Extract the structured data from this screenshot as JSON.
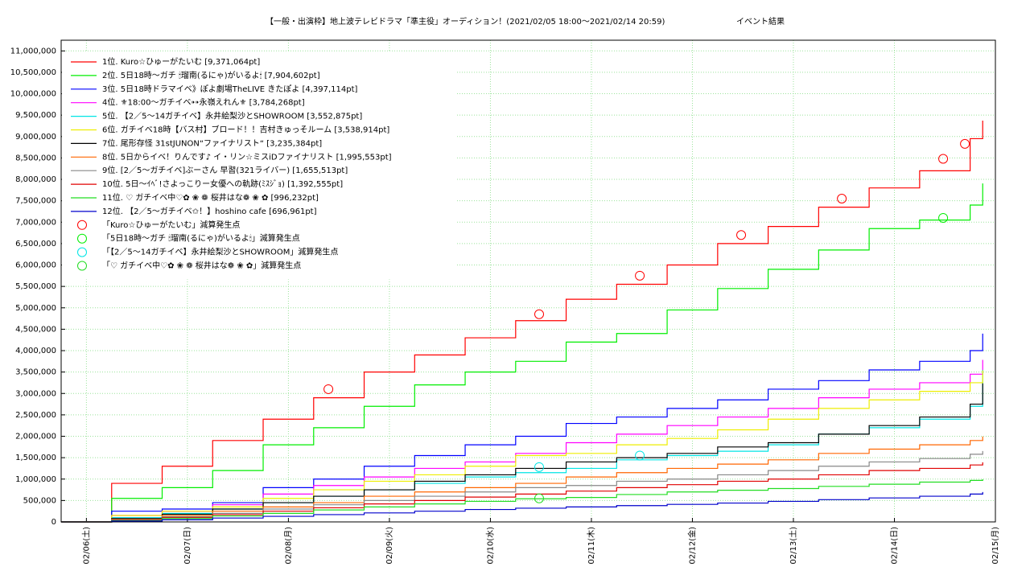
{
  "chart_data": {
    "type": "line",
    "title": "【一般・出演枠】地上波テレビドラマ「準主役」オーディション！(2021/02/05 18:00〜2021/02/14 20:59)",
    "subtitle": "イベント結果",
    "x": [
      "2021/02/05 18:00",
      "2021/02/06 06:00",
      "2021/02/06 18:00",
      "2021/02/07 06:00",
      "2021/02/07 18:00",
      "2021/02/08 06:00",
      "2021/02/08 18:00",
      "2021/02/09 06:00",
      "2021/02/09 18:00",
      "2021/02/10 06:00",
      "2021/02/10 18:00",
      "2021/02/11 06:00",
      "2021/02/11 18:00",
      "2021/02/12 06:00",
      "2021/02/12 18:00",
      "2021/02/13 06:00",
      "2021/02/13 18:00",
      "2021/02/14 06:00",
      "2021/02/14 18:00",
      "2021/02/14 20:59"
    ],
    "xlim": [
      "2021/02/05 18:00",
      "2021/02/15 00:00"
    ],
    "xticks": [
      {
        "value": "2021/02/06 00:00",
        "label": "02/06(土)"
      },
      {
        "value": "2021/02/07 00:00",
        "label": "02/07(日)"
      },
      {
        "value": "2021/02/08 00:00",
        "label": "02/08(月)"
      },
      {
        "value": "2021/02/09 00:00",
        "label": "02/09(火)"
      },
      {
        "value": "2021/02/10 00:00",
        "label": "02/10(水)"
      },
      {
        "value": "2021/02/11 00:00",
        "label": "02/11(木)"
      },
      {
        "value": "2021/02/12 00:00",
        "label": "02/12(金)"
      },
      {
        "value": "2021/02/13 00:00",
        "label": "02/13(土)"
      },
      {
        "value": "2021/02/14 00:00",
        "label": "02/14(日)"
      },
      {
        "value": "2021/02/15 00:00",
        "label": "02/15(月)"
      }
    ],
    "ylim": [
      0,
      11250000
    ],
    "yticks": [
      0,
      {
        "value": 500000,
        "label": "500,000"
      },
      {
        "value": 1000000,
        "label": "1,000,000"
      },
      {
        "value": 1500000,
        "label": "1,500,000"
      },
      {
        "value": 2000000,
        "label": "2,000,000"
      },
      {
        "value": 2500000,
        "label": "2,500,000"
      },
      {
        "value": 3000000,
        "label": "3,000,000"
      },
      {
        "value": 3500000,
        "label": "3,500,000"
      },
      {
        "value": 4000000,
        "label": "4,000,000"
      },
      {
        "value": 4500000,
        "label": "4,500,000"
      },
      {
        "value": 5000000,
        "label": "5,000,000"
      },
      {
        "value": 5500000,
        "label": "5,500,000"
      },
      {
        "value": 6000000,
        "label": "6,000,000"
      },
      {
        "value": 6500000,
        "label": "6,500,000"
      },
      {
        "value": 7000000,
        "label": "7,000,000"
      },
      {
        "value": 7500000,
        "label": "7,500,000"
      },
      {
        "value": 8000000,
        "label": "8,000,000"
      },
      {
        "value": 8500000,
        "label": "8,500,000"
      },
      {
        "value": 9000000,
        "label": "9,000,000"
      },
      {
        "value": 9500000,
        "label": "9,500,000"
      },
      {
        "value": 10000000,
        "label": "10,000,000"
      },
      {
        "value": 10500000,
        "label": "10,500,000"
      },
      {
        "value": 11000000,
        "label": "11,000,000"
      }
    ],
    "grid": true,
    "legend": "upper left",
    "series": [
      {
        "name": "1位. Kuro☆ひゅーがたいむ [9,371,064pt]",
        "color": "#ff0000",
        "values": [
          0,
          900000,
          1300000,
          1900000,
          2400000,
          2900000,
          3500000,
          3900000,
          4300000,
          4700000,
          5200000,
          5550000,
          6000000,
          6500000,
          6900000,
          7350000,
          7800000,
          8200000,
          8950000,
          9371064
        ]
      },
      {
        "name": "2位. 5日18時〜ガチ 🕯瑠南(るにゃ)がいるよ🕯 [7,904,602pt]",
        "color": "#00ee00",
        "values": [
          0,
          550000,
          800000,
          1200000,
          1800000,
          2200000,
          2700000,
          3200000,
          3500000,
          3750000,
          4200000,
          4400000,
          4950000,
          5450000,
          5900000,
          6350000,
          6850000,
          7050000,
          7400000,
          7904602
        ]
      },
      {
        "name": "3位. 5日18時ドラマイベ》ぽよ劇場TheLIVE きたぽよ [4,397,114pt]",
        "color": "#0000ff",
        "values": [
          0,
          250000,
          300000,
          450000,
          800000,
          1000000,
          1300000,
          1550000,
          1800000,
          2000000,
          2300000,
          2450000,
          2650000,
          2850000,
          3100000,
          3300000,
          3550000,
          3750000,
          4000000,
          4397114
        ]
      },
      {
        "name": "4位. ⚜18:00〜ガチイベ⁍⁍永嶺えれん⚜ [3,784,268pt]",
        "color": "#ff00ff",
        "values": [
          0,
          150000,
          250000,
          400000,
          650000,
          850000,
          1050000,
          1250000,
          1400000,
          1600000,
          1850000,
          2050000,
          2250000,
          2450000,
          2650000,
          2900000,
          3100000,
          3250000,
          3450000,
          3784268
        ]
      },
      {
        "name": "5位. 【2／5〜14ガチイベ】永井絵梨沙とSHOWROOM [3,552,875pt]",
        "color": "#00e5e5",
        "values": [
          0,
          100000,
          200000,
          300000,
          450000,
          600000,
          750000,
          900000,
          1050000,
          1150000,
          1250000,
          1450000,
          1550000,
          1650000,
          1800000,
          2050000,
          2200000,
          2400000,
          2700000,
          3552875
        ]
      },
      {
        "name": "6位. ガチイベ18時【バス村】ブロード！！吉村きゅっそルーム [3,538,914pt]",
        "color": "#eeee00",
        "values": [
          0,
          150000,
          250000,
          350000,
          550000,
          750000,
          950000,
          1100000,
          1300000,
          1550000,
          1600000,
          1800000,
          1950000,
          2150000,
          2400000,
          2650000,
          2850000,
          3050000,
          3250000,
          3538914
        ]
      },
      {
        "name": "7位. 尾形存怪 31stJUNON“ファイナリスト“ [3,235,384pt]",
        "color": "#000000",
        "values": [
          0,
          80000,
          180000,
          300000,
          450000,
          600000,
          750000,
          950000,
          1100000,
          1250000,
          1400000,
          1500000,
          1600000,
          1750000,
          1850000,
          2050000,
          2250000,
          2450000,
          2750000,
          3235384
        ]
      },
      {
        "name": "8位. 5日からイベ！りんです♪ イ・リン☆ミスiDファイナリスト [1,995,553pt]",
        "color": "#ff6600",
        "values": [
          0,
          60000,
          150000,
          250000,
          350000,
          450000,
          600000,
          700000,
          800000,
          900000,
          1050000,
          1150000,
          1250000,
          1350000,
          1450000,
          1600000,
          1700000,
          1800000,
          1900000,
          1995553
        ]
      },
      {
        "name": "9位. [2／5〜ガチイベ]ぶーさん 早習(321ライバー) [1,655,513pt]",
        "color": "#888888",
        "values": [
          0,
          50000,
          120000,
          200000,
          300000,
          400000,
          500000,
          600000,
          700000,
          800000,
          850000,
          950000,
          1000000,
          1100000,
          1200000,
          1300000,
          1400000,
          1480000,
          1580000,
          1655513
        ]
      },
      {
        "name": "10位. 5日〜ｲﾍﾞ!さよっこりー女優への軌跡(ﾐｽｼﾞｮ) [1,392,555pt]",
        "color": "#e00000",
        "values": [
          0,
          40000,
          100000,
          170000,
          250000,
          330000,
          420000,
          500000,
          580000,
          650000,
          720000,
          800000,
          870000,
          950000,
          1000000,
          1100000,
          1200000,
          1250000,
          1330000,
          1392555
        ]
      },
      {
        "name": "11位. ♡ ガチイベ中♡✿ ❀ ❁ 桜井はな❁ ❀ ✿ [996,232pt]",
        "color": "#22dd22",
        "values": [
          0,
          30000,
          80000,
          140000,
          200000,
          280000,
          350000,
          420000,
          480000,
          540000,
          570000,
          640000,
          700000,
          740000,
          780000,
          830000,
          880000,
          930000,
          970000,
          996232
        ]
      },
      {
        "name": "12位. 【2／5〜ガチイベ✩！】hoshino cafe [696,961pt]",
        "color": "#0000cc",
        "values": [
          0,
          20000,
          50000,
          90000,
          130000,
          170000,
          210000,
          250000,
          290000,
          320000,
          350000,
          380000,
          410000,
          440000,
          480000,
          520000,
          560000,
          600000,
          650000,
          696961
        ]
      }
    ],
    "markers": [
      {
        "name": "「Kuro☆ひゅーがたいむ」減算発生点",
        "color": "#ff0000",
        "x": [
          "2021/02/08 09:30",
          "2021/02/10 11:35",
          "2021/02/11 11:30",
          "2021/02/12 11:35",
          "2021/02/13 11:30",
          "2021/02/14 11:35",
          "2021/02/14 16:45"
        ],
        "values": [
          3100000,
          4850000,
          5750000,
          6700000,
          7550000,
          8480000,
          8830000
        ]
      },
      {
        "name": "「5日18時〜ガチ 🕯瑠南(るにゃ)がいるよ🕯」減算発生点",
        "color": "#00ee00",
        "x": [
          "2021/02/14 11:35"
        ],
        "values": [
          7100000
        ]
      },
      {
        "name": "「【2／5〜14ガチイベ】永井絵梨沙とSHOWROOM」減算発生点",
        "color": "#00e5e5",
        "x": [
          "2021/02/10 11:35",
          "2021/02/11 11:30"
        ],
        "values": [
          1280000,
          1550000
        ]
      },
      {
        "name": "「♡ ガチイベ中♡✿ ❀ ❁ 桜井はな❁ ❀ ✿」減算発生点",
        "color": "#22dd22",
        "x": [
          "2021/02/10 11:35"
        ],
        "values": [
          550000
        ]
      }
    ]
  }
}
